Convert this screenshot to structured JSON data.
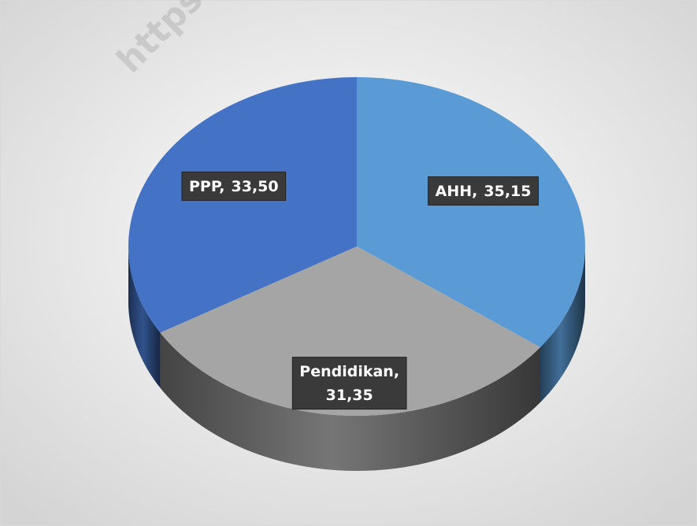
{
  "chart_data": {
    "type": "pie3d",
    "watermark": "https",
    "categories": [
      "AHH",
      "Pendidikan",
      "PPP"
    ],
    "values": [
      35.15,
      31.35,
      33.5
    ],
    "value_labels": [
      "35,15",
      "31,35",
      "33,50"
    ],
    "colors": [
      "#5b9bd5",
      "#a5a5a5",
      "#4472c4"
    ]
  }
}
